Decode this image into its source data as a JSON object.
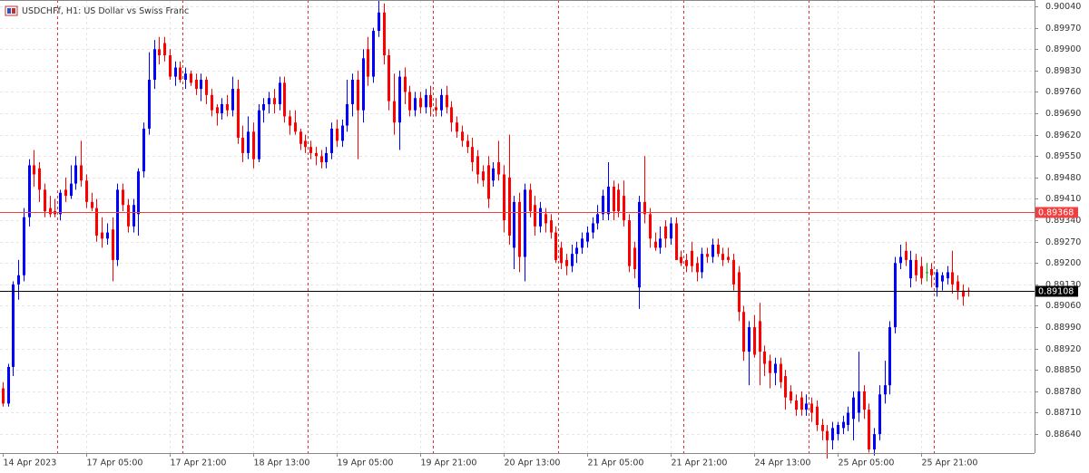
{
  "chart_data": {
    "type": "candlestick",
    "title": "USDCHFf, H1:  US Dollar vs Swiss Franc",
    "categories": [
      "14 Apr 2023",
      null,
      null,
      null,
      null,
      null,
      null,
      null,
      null,
      null,
      null,
      null,
      null,
      null,
      null,
      null,
      "17 Apr 05:00",
      null,
      null,
      null,
      null,
      null,
      null,
      null,
      null,
      null,
      null,
      null,
      null,
      null,
      null,
      null,
      "17 Apr 21:00",
      null,
      null,
      null,
      null,
      null,
      null,
      null,
      null,
      null,
      null,
      null,
      null,
      null,
      null,
      null,
      "18 Apr 13:00",
      null,
      null,
      null,
      null,
      null,
      null,
      null,
      null,
      null,
      null,
      null,
      null,
      null,
      null,
      null,
      "19 Apr 05:00",
      null,
      null,
      null,
      null,
      null,
      null,
      null,
      null,
      null,
      null,
      null,
      null,
      null,
      null,
      null,
      "19 Apr 21:00",
      null,
      null,
      null,
      null,
      null,
      null,
      null,
      null,
      null,
      null,
      null,
      null,
      null,
      null,
      null,
      "20 Apr 13:00",
      null,
      null,
      null,
      null,
      null,
      null,
      null,
      null,
      null,
      null,
      null,
      null,
      null,
      null,
      null,
      "21 Apr 05:00",
      null,
      null,
      null,
      null,
      null,
      null,
      null,
      null,
      null,
      null,
      null,
      null,
      null,
      null,
      null,
      "21 Apr 21:00",
      null,
      null,
      null,
      null,
      null,
      null,
      null,
      null,
      null,
      null,
      null,
      null,
      null,
      null,
      null,
      "24 Apr 13:00",
      null,
      null,
      null,
      null,
      null,
      null,
      null,
      null,
      null,
      null,
      null,
      null,
      null,
      null,
      null,
      "25 Apr 05:00",
      null,
      null,
      null,
      null,
      null,
      null,
      null,
      null,
      null,
      null,
      null,
      null,
      null,
      null,
      null,
      "25 Apr 21:00",
      null,
      null,
      null,
      null,
      null,
      null,
      null,
      null,
      null
    ],
    "open": [
      0.8879,
      0.8874,
      0.8886,
      0.8913,
      0.8916,
      0.8935,
      0.8952,
      0.8951,
      0.8944,
      0.8938,
      0.8937,
      0.8936,
      0.8944,
      0.8942,
      0.8946,
      0.8952,
      0.8947,
      0.894,
      0.8938,
      0.893,
      0.8928,
      0.8931,
      0.8921,
      0.8944,
      0.8939,
      0.8932,
      0.8936,
      0.895,
      0.8964,
      0.898,
      0.899,
      0.8992,
      0.8988,
      0.8981,
      0.8984,
      0.898,
      0.8982,
      0.898,
      0.8977,
      0.898,
      0.8975,
      0.8971,
      0.8969,
      0.8972,
      0.897,
      0.8977,
      0.8961,
      0.8956,
      0.8963,
      0.8954,
      0.897,
      0.8972,
      0.8974,
      0.8972,
      0.8979,
      0.8968,
      0.8966,
      0.8963,
      0.896,
      0.8958,
      0.8956,
      0.8955,
      0.8953,
      0.8956,
      0.8964,
      0.896,
      0.8965,
      0.8972,
      0.898,
      0.897,
      0.899,
      0.8981,
      0.8996,
      0.9002,
      0.8988,
      0.8973,
      0.8966,
      0.8981,
      0.8976,
      0.897,
      0.8974,
      0.8971,
      0.8975,
      0.8971,
      0.897,
      0.8975,
      0.8971,
      0.8966,
      0.8963,
      0.896,
      0.8958,
      0.8955,
      0.895,
      0.8952,
      0.8947,
      0.8953,
      0.8949,
      0.8948,
      0.8925,
      0.894,
      0.8922,
      0.8944,
      0.8939,
      0.8932,
      0.8936,
      0.8934,
      0.893,
      0.8925,
      0.8921,
      0.8919,
      0.8923,
      0.8925,
      0.8927,
      0.893,
      0.8933,
      0.8936,
      0.8936,
      0.8945,
      0.8944,
      0.8942,
      0.8934,
      0.8925,
      0.8912,
      0.894,
      0.8936,
      0.8927,
      0.8925,
      0.8932,
      0.8928,
      0.8933,
      0.8922,
      0.8921,
      0.8924,
      0.892,
      0.8917,
      0.8923,
      0.8922,
      0.8926,
      0.8923,
      0.8922,
      0.8921,
      0.8917,
      0.8904,
      0.8891,
      0.8899,
      0.8901,
      0.8891,
      0.8888,
      0.8884,
      0.8887,
      0.8883,
      0.8878,
      0.8875,
      0.8876,
      0.8872,
      0.8874,
      0.8873,
      0.8867,
      0.8865,
      0.8862,
      0.8864,
      0.8866,
      0.8867,
      0.8869,
      0.8871,
      0.8878,
      0.8872,
      0.8859,
      0.8864,
      0.8877,
      0.888,
      0.8899,
      0.892,
      0.8924,
      0.8915,
      0.8921,
      0.8919,
      0.8917,
      0.8918,
      0.8912,
      0.8914,
      0.8915,
      0.8917,
      0.8914,
      0.8911,
      0.8911
    ],
    "high": [
      0.8881,
      0.8887,
      0.8914,
      0.8921,
      0.8938,
      0.8954,
      0.8957,
      0.8953,
      0.8946,
      0.8942,
      0.8941,
      0.8944,
      0.8948,
      0.8952,
      0.8955,
      0.896,
      0.8949,
      0.8943,
      0.8941,
      0.8935,
      0.8933,
      0.8935,
      0.8946,
      0.8946,
      0.8941,
      0.8941,
      0.8951,
      0.8966,
      0.8989,
      0.8993,
      0.8994,
      0.8994,
      0.899,
      0.8986,
      0.8986,
      0.8984,
      0.8983,
      0.8982,
      0.8982,
      0.8981,
      0.8977,
      0.8972,
      0.8974,
      0.8975,
      0.8981,
      0.898,
      0.8965,
      0.8968,
      0.8966,
      0.8972,
      0.8974,
      0.8976,
      0.8977,
      0.8981,
      0.8981,
      0.897,
      0.897,
      0.8964,
      0.8962,
      0.896,
      0.8958,
      0.8957,
      0.8958,
      0.8966,
      0.8967,
      0.8967,
      0.898,
      0.8982,
      0.8983,
      0.899,
      0.8994,
      0.8997,
      0.9008,
      0.9005,
      0.899,
      0.8982,
      0.8983,
      0.8984,
      0.8978,
      0.8976,
      0.8976,
      0.8977,
      0.8978,
      0.8974,
      0.8977,
      0.8978,
      0.8973,
      0.8968,
      0.8965,
      0.8962,
      0.8961,
      0.8957,
      0.8952,
      0.8955,
      0.8953,
      0.896,
      0.8952,
      0.8962,
      0.8942,
      0.8943,
      0.8946,
      0.8946,
      0.8942,
      0.894,
      0.8938,
      0.8936,
      0.8932,
      0.8927,
      0.8923,
      0.8926,
      0.8927,
      0.893,
      0.8932,
      0.8935,
      0.8939,
      0.8944,
      0.8953,
      0.8947,
      0.8946,
      0.8947,
      0.8936,
      0.8927,
      0.8942,
      0.8955,
      0.8938,
      0.893,
      0.8932,
      0.8934,
      0.8935,
      0.8935,
      0.8924,
      0.8923,
      0.8927,
      0.8922,
      0.8925,
      0.8925,
      0.8928,
      0.8928,
      0.8925,
      0.8925,
      0.8923,
      0.8919,
      0.8906,
      0.8901,
      0.8903,
      0.8907,
      0.8893,
      0.889,
      0.8889,
      0.8889,
      0.8885,
      0.888,
      0.8877,
      0.8878,
      0.8877,
      0.8876,
      0.8875,
      0.8869,
      0.8867,
      0.8868,
      0.8868,
      0.887,
      0.8873,
      0.8878,
      0.8891,
      0.888,
      0.8874,
      0.8866,
      0.888,
      0.8888,
      0.8901,
      0.8922,
      0.8926,
      0.8927,
      0.8924,
      0.8923,
      0.8922,
      0.892,
      0.892,
      0.8918,
      0.8917,
      0.8919,
      0.8924,
      0.8916,
      0.8913,
      0.8912
    ],
    "low": [
      0.8873,
      0.8873,
      0.8883,
      0.8908,
      0.8914,
      0.8932,
      0.8945,
      0.894,
      0.8935,
      0.8935,
      0.8935,
      0.8934,
      0.894,
      0.8941,
      0.8944,
      0.8945,
      0.8938,
      0.8937,
      0.8927,
      0.8925,
      0.8926,
      0.8914,
      0.8919,
      0.8937,
      0.893,
      0.893,
      0.8929,
      0.8948,
      0.8962,
      0.8977,
      0.8985,
      0.8986,
      0.898,
      0.8978,
      0.8979,
      0.8977,
      0.8978,
      0.8975,
      0.8973,
      0.8972,
      0.8968,
      0.8965,
      0.8967,
      0.8968,
      0.8968,
      0.8959,
      0.8953,
      0.8954,
      0.8951,
      0.8953,
      0.8966,
      0.8969,
      0.8969,
      0.897,
      0.8966,
      0.8962,
      0.8962,
      0.8957,
      0.8956,
      0.8954,
      0.8952,
      0.8951,
      0.8951,
      0.8954,
      0.8958,
      0.8958,
      0.8963,
      0.8968,
      0.8954,
      0.8966,
      0.8978,
      0.8979,
      0.8994,
      0.8985,
      0.897,
      0.8962,
      0.8957,
      0.8972,
      0.8968,
      0.8968,
      0.8969,
      0.8969,
      0.8968,
      0.8968,
      0.8968,
      0.8969,
      0.8963,
      0.8961,
      0.8958,
      0.8956,
      0.895,
      0.8946,
      0.8945,
      0.8938,
      0.8945,
      0.8947,
      0.893,
      0.8926,
      0.8918,
      0.8917,
      0.8914,
      0.8935,
      0.8929,
      0.893,
      0.893,
      0.8928,
      0.892,
      0.8918,
      0.8916,
      0.8917,
      0.892,
      0.8923,
      0.8925,
      0.8928,
      0.8931,
      0.8934,
      0.8934,
      0.8934,
      0.8935,
      0.8932,
      0.8917,
      0.8915,
      0.8905,
      0.8933,
      0.8925,
      0.8924,
      0.8923,
      0.8925,
      0.8926,
      0.8921,
      0.8919,
      0.8917,
      0.8917,
      0.8914,
      0.8915,
      0.892,
      0.892,
      0.8922,
      0.8919,
      0.892,
      0.8911,
      0.8901,
      0.8888,
      0.888,
      0.8889,
      0.888,
      0.8883,
      0.8879,
      0.888,
      0.8879,
      0.8872,
      0.8874,
      0.887,
      0.887,
      0.887,
      0.8868,
      0.8865,
      0.8862,
      0.8856,
      0.8859,
      0.8862,
      0.8864,
      0.8865,
      0.8862,
      0.8868,
      0.8869,
      0.8858,
      0.8857,
      0.8862,
      0.8874,
      0.8877,
      0.8897,
      0.8918,
      0.8919,
      0.8912,
      0.8914,
      0.8913,
      0.8914,
      0.8912,
      0.8909,
      0.8911,
      0.8913,
      0.891,
      0.8908,
      0.8906,
      0.8909
    ],
    "close": [
      0.8874,
      0.8886,
      0.8913,
      0.8916,
      0.8935,
      0.8952,
      0.8949,
      0.8944,
      0.8937,
      0.8936,
      0.8936,
      0.8943,
      0.8942,
      0.8946,
      0.8952,
      0.8947,
      0.894,
      0.8938,
      0.8929,
      0.8928,
      0.893,
      0.8921,
      0.8944,
      0.8939,
      0.8932,
      0.8939,
      0.895,
      0.8964,
      0.898,
      0.899,
      0.8988,
      0.8988,
      0.8981,
      0.8984,
      0.898,
      0.8982,
      0.8979,
      0.8977,
      0.898,
      0.8975,
      0.897,
      0.8969,
      0.8972,
      0.897,
      0.8977,
      0.8961,
      0.8956,
      0.8963,
      0.8954,
      0.897,
      0.8972,
      0.8974,
      0.8972,
      0.8979,
      0.8968,
      0.8965,
      0.8963,
      0.8959,
      0.8958,
      0.8956,
      0.8955,
      0.8953,
      0.8956,
      0.8964,
      0.896,
      0.8965,
      0.8972,
      0.898,
      0.897,
      0.8987,
      0.8981,
      0.8996,
      0.9002,
      0.8988,
      0.8973,
      0.8966,
      0.8981,
      0.8976,
      0.897,
      0.8974,
      0.8971,
      0.8975,
      0.8971,
      0.897,
      0.8975,
      0.8971,
      0.8966,
      0.8963,
      0.896,
      0.8958,
      0.8953,
      0.8949,
      0.8947,
      0.8941,
      0.8951,
      0.8949,
      0.8934,
      0.8929,
      0.894,
      0.8922,
      0.8944,
      0.8937,
      0.8932,
      0.8938,
      0.8933,
      0.893,
      0.8921,
      0.892,
      0.8919,
      0.8923,
      0.8925,
      0.8928,
      0.893,
      0.8933,
      0.8936,
      0.8942,
      0.8945,
      0.8937,
      0.8937,
      0.8934,
      0.8919,
      0.8918,
      0.894,
      0.8936,
      0.8928,
      0.8925,
      0.8928,
      0.8928,
      0.8933,
      0.8921,
      0.892,
      0.8919,
      0.8919,
      0.8917,
      0.8923,
      0.8922,
      0.8926,
      0.8923,
      0.8921,
      0.8921,
      0.8913,
      0.8904,
      0.8891,
      0.8899,
      0.889,
      0.8891,
      0.8887,
      0.8884,
      0.8887,
      0.8881,
      0.8876,
      0.8875,
      0.8872,
      0.8872,
      0.8874,
      0.8871,
      0.8867,
      0.8865,
      0.8862,
      0.8866,
      0.8867,
      0.8868,
      0.8871,
      0.8876,
      0.8878,
      0.8872,
      0.8859,
      0.8864,
      0.8877,
      0.888,
      0.8899,
      0.892,
      0.8922,
      0.8921,
      0.8921,
      0.8916,
      0.8915,
      0.8917,
      0.8916,
      0.8917,
      0.8916,
      0.8917,
      0.8913,
      0.8911,
      0.8909,
      0.89108
    ],
    "up_color": "#0000ff",
    "down_color": "#ff0000",
    "doji_color": "#00b000",
    "ylim": [
      0.88578,
      0.90061
    ],
    "yticks": [
      {
        "value": 0.9004,
        "label": "0.90040"
      },
      {
        "value": 0.8997,
        "label": "0.89970"
      },
      {
        "value": 0.899,
        "label": "0.89900"
      },
      {
        "value": 0.8983,
        "label": "0.89830"
      },
      {
        "value": 0.8976,
        "label": "0.89760"
      },
      {
        "value": 0.8969,
        "label": "0.89690"
      },
      {
        "value": 0.8962,
        "label": "0.89620"
      },
      {
        "value": 0.8955,
        "label": "0.89550"
      },
      {
        "value": 0.8948,
        "label": "0.89480"
      },
      {
        "value": 0.8941,
        "label": "0.89410"
      },
      {
        "value": 0.8934,
        "label": "0.89340"
      },
      {
        "value": 0.8927,
        "label": "0.89270"
      },
      {
        "value": 0.892,
        "label": "0.89200"
      },
      {
        "value": 0.8913,
        "label": "0.89130"
      },
      {
        "value": 0.8906,
        "label": "0.89060"
      },
      {
        "value": 0.8899,
        "label": "0.88990"
      },
      {
        "value": 0.8892,
        "label": "0.88920"
      },
      {
        "value": 0.8885,
        "label": "0.88850"
      },
      {
        "value": 0.8878,
        "label": "0.88780"
      },
      {
        "value": 0.8871,
        "label": "0.88710"
      },
      {
        "value": 0.8864,
        "label": "0.88640"
      }
    ],
    "grid": true,
    "period_separators": true,
    "separator_color": "#e03030",
    "price_lines": [
      {
        "value": 0.89368,
        "color": "#f04040"
      },
      {
        "value": 0.89108,
        "color": "#000000"
      }
    ]
  }
}
